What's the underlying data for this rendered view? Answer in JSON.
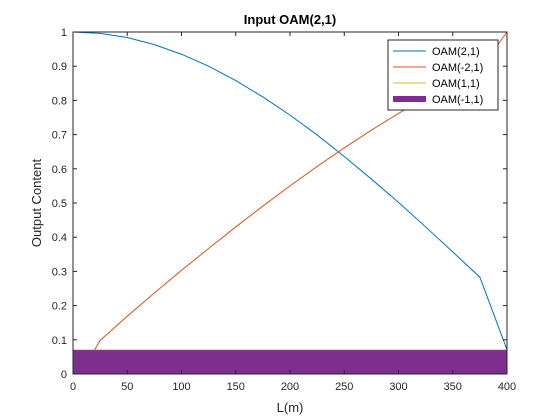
{
  "chart_data": {
    "type": "line",
    "title": "Input OAM(2,1)",
    "xlabel": "L(m)",
    "ylabel": "Output Content",
    "xlim": [
      0,
      400
    ],
    "ylim": [
      0,
      1
    ],
    "xticks": [
      0,
      50,
      100,
      150,
      200,
      250,
      300,
      350,
      400
    ],
    "yticks": [
      0,
      0.1,
      0.2,
      0.3,
      0.4,
      0.5,
      0.6,
      0.7,
      0.8,
      0.9,
      1
    ],
    "grid": false,
    "legend_position": "top-right",
    "x": [
      0,
      25,
      50,
      75,
      100,
      125,
      150,
      175,
      200,
      225,
      250,
      275,
      300,
      325,
      350,
      375,
      400
    ],
    "series": [
      {
        "name": "OAM(2,1)",
        "color": "#0072BD",
        "values": [
          1.0,
          0.996,
          0.984,
          0.963,
          0.935,
          0.9,
          0.858,
          0.81,
          0.757,
          0.699,
          0.636,
          0.57,
          0.502,
          0.43,
          0.357,
          0.283,
          0.071
        ]
      },
      {
        "name": "OAM(-2,1)",
        "color": "#D95319",
        "values": [
          0.0,
          0.098,
          0.169,
          0.237,
          0.303,
          0.367,
          0.43,
          0.491,
          0.55,
          0.607,
          0.661,
          0.713,
          0.762,
          0.808,
          0.851,
          0.89,
          1.0
        ]
      },
      {
        "name": "OAM(1,1)",
        "color": "#EDB120",
        "values": [
          0.07,
          0.07,
          0.07,
          0.07,
          0.07,
          0.07,
          0.07,
          0.07,
          0.07,
          0.07,
          0.07,
          0.07,
          0.07,
          0.07,
          0.07,
          0.07,
          0.07
        ]
      },
      {
        "name": "OAM(-1,1)",
        "color": "#7E2F8E",
        "values": [
          0.0,
          0.0,
          0.0,
          0.0,
          0.0,
          0.0,
          0.0,
          0.0,
          0.0,
          0.0,
          0.0,
          0.0,
          0.0,
          0.0,
          0.0,
          0.0,
          0.0
        ],
        "band_top": 0.07
      }
    ]
  }
}
